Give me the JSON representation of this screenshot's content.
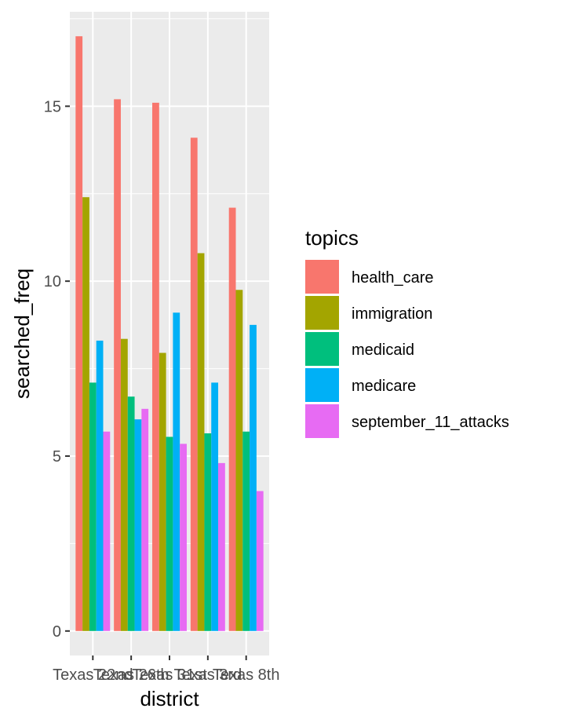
{
  "chart_data": {
    "type": "bar",
    "xlabel": "district",
    "ylabel": "searched_freq",
    "categories": [
      "Texas 22nd",
      "Texas 26th",
      "Texas 31st",
      "Texas 3rd",
      "Texas 8th"
    ],
    "series": [
      {
        "name": "health_care",
        "color": "#F8766D",
        "values": [
          17.0,
          15.2,
          15.1,
          14.1,
          12.1
        ]
      },
      {
        "name": "immigration",
        "color": "#A3A500",
        "values": [
          12.4,
          8.35,
          7.95,
          10.8,
          9.75
        ]
      },
      {
        "name": "medicaid",
        "color": "#00BF7D",
        "values": [
          7.1,
          6.7,
          5.55,
          5.65,
          5.7
        ]
      },
      {
        "name": "medicare",
        "color": "#00B0F6",
        "values": [
          8.3,
          6.05,
          9.1,
          7.1,
          8.75
        ]
      },
      {
        "name": "september_11_attacks",
        "color": "#E76BF3",
        "values": [
          5.7,
          6.35,
          5.35,
          4.8,
          4.0
        ]
      }
    ],
    "ylim": [
      -0.7,
      17.7
    ],
    "yticks": [
      0,
      5,
      10,
      15
    ],
    "yticklabels": [
      "0",
      "5",
      "10",
      "15"
    ],
    "legend": {
      "title": "topics",
      "position": "right"
    },
    "panel_background": "#EBEBEB",
    "grid_color": "#FFFFFF",
    "grid": true
  }
}
